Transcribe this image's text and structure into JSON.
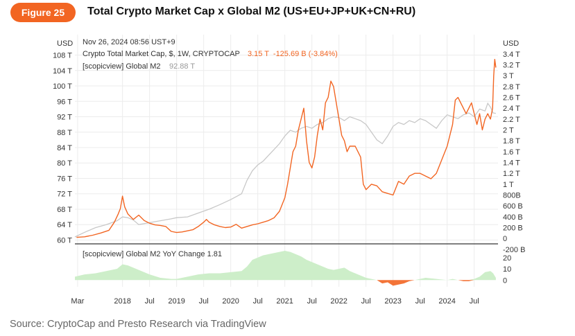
{
  "figure_label": "Figure 25",
  "title": "Total Crypto Market Cap x Global M2 (US+EU+JP+UK+CN+RU)",
  "source": "Source: CryptoCap and Presto Research via TradingView",
  "colors": {
    "accent": "#f26522",
    "crypto": "#f26522",
    "m2": "#c8c8c8",
    "yoy_pos": "#cdeec9",
    "yoy_neg": "#f26522"
  },
  "chart_data": [
    {
      "type": "line",
      "header": {
        "timestamp": "Nov 26, 2024 08:56 UST+9",
        "series1_label": "Crypto Total Market Cap, $, 1W, CRYPTOCAP",
        "series1_values": "3.15 T  -125.69 B (-3.84%)",
        "series2_label": "[scopicview] Global M2",
        "series2_value": "92.88 T"
      },
      "left_axis": {
        "unit": "USD",
        "ticks": [
          "108 T",
          "104 T",
          "100 T",
          "96 T",
          "92 T",
          "88 T",
          "84 T",
          "80 T",
          "76 T",
          "72 T",
          "68 T",
          "64 T",
          "60 T"
        ],
        "range": [
          59,
          109
        ]
      },
      "right_axis": {
        "unit": "USD",
        "ticks": [
          "3.4 T",
          "3.2 T",
          "3 T",
          "2.8 T",
          "2.6 T",
          "2.4 T",
          "2.2 T",
          "2 T",
          "1.8 T",
          "1.6 T",
          "1.4 T",
          "1.2 T",
          "1 T",
          "800B",
          "600 B",
          "400 B",
          "200 B",
          "0",
          "-200 B"
        ],
        "range": [
          -0.1,
          3.45
        ]
      },
      "x_axis": {
        "ticks": [
          "Mar",
          "2018",
          "Jul",
          "2019",
          "Jul",
          "2020",
          "Jul",
          "2021",
          "Jul",
          "2022",
          "Jul",
          "2023",
          "Jul",
          "2024",
          "Jul"
        ],
        "range": [
          2017.12,
          2024.94
        ]
      },
      "series": [
        {
          "name": "Crypto Total Market Cap",
          "axis": "right",
          "x": [
            2017.15,
            2017.3,
            2017.45,
            2017.6,
            2017.75,
            2017.85,
            2017.92,
            2017.96,
            2018.0,
            2018.04,
            2018.1,
            2018.2,
            2018.3,
            2018.4,
            2018.5,
            2018.6,
            2018.7,
            2018.8,
            2018.9,
            2019.0,
            2019.1,
            2019.2,
            2019.3,
            2019.4,
            2019.5,
            2019.55,
            2019.6,
            2019.7,
            2019.8,
            2019.9,
            2020.0,
            2020.1,
            2020.2,
            2020.3,
            2020.4,
            2020.5,
            2020.6,
            2020.7,
            2020.8,
            2020.9,
            2021.0,
            2021.05,
            2021.1,
            2021.15,
            2021.2,
            2021.25,
            2021.3,
            2021.35,
            2021.4,
            2021.45,
            2021.5,
            2021.55,
            2021.6,
            2021.65,
            2021.7,
            2021.75,
            2021.8,
            2021.85,
            2021.9,
            2021.95,
            2022.0,
            2022.05,
            2022.1,
            2022.15,
            2022.2,
            2022.3,
            2022.4,
            2022.45,
            2022.5,
            2022.6,
            2022.7,
            2022.8,
            2022.9,
            2023.0,
            2023.1,
            2023.2,
            2023.3,
            2023.4,
            2023.5,
            2023.6,
            2023.7,
            2023.8,
            2023.9,
            2024.0,
            2024.1,
            2024.15,
            2024.2,
            2024.25,
            2024.3,
            2024.35,
            2024.4,
            2024.45,
            2024.5,
            2024.55,
            2024.6,
            2024.65,
            2024.7,
            2024.75,
            2024.8,
            2024.84,
            2024.86,
            2024.88,
            2024.9
          ],
          "y": [
            0.02,
            0.03,
            0.06,
            0.1,
            0.15,
            0.3,
            0.45,
            0.55,
            0.78,
            0.58,
            0.45,
            0.35,
            0.43,
            0.33,
            0.28,
            0.25,
            0.24,
            0.22,
            0.13,
            0.11,
            0.12,
            0.14,
            0.16,
            0.22,
            0.3,
            0.35,
            0.3,
            0.25,
            0.22,
            0.2,
            0.21,
            0.26,
            0.19,
            0.22,
            0.25,
            0.27,
            0.3,
            0.33,
            0.38,
            0.5,
            0.75,
            1.0,
            1.3,
            1.6,
            1.7,
            2.0,
            2.2,
            2.4,
            1.8,
            1.4,
            1.3,
            1.5,
            1.9,
            2.2,
            2.0,
            2.5,
            2.6,
            2.9,
            2.8,
            2.5,
            2.2,
            1.9,
            1.8,
            1.6,
            1.7,
            1.7,
            1.5,
            1.0,
            0.9,
            1.0,
            0.97,
            0.86,
            0.83,
            0.8,
            1.05,
            1.0,
            1.15,
            1.2,
            1.2,
            1.15,
            1.1,
            1.2,
            1.45,
            1.7,
            2.1,
            2.55,
            2.6,
            2.5,
            2.4,
            2.3,
            2.4,
            2.5,
            2.3,
            2.1,
            2.3,
            2.0,
            2.2,
            2.3,
            2.2,
            2.4,
            3.0,
            3.3,
            3.15
          ]
        },
        {
          "name": "Global M2",
          "axis": "left",
          "x": [
            2017.12,
            2017.3,
            2017.5,
            2017.7,
            2017.9,
            2018.0,
            2018.1,
            2018.2,
            2018.3,
            2018.5,
            2018.7,
            2018.9,
            2019.0,
            2019.2,
            2019.4,
            2019.6,
            2019.8,
            2020.0,
            2020.2,
            2020.3,
            2020.4,
            2020.5,
            2020.6,
            2020.7,
            2020.8,
            2020.9,
            2021.0,
            2021.1,
            2021.2,
            2021.3,
            2021.4,
            2021.5,
            2021.6,
            2021.7,
            2021.8,
            2021.9,
            2022.0,
            2022.1,
            2022.2,
            2022.3,
            2022.4,
            2022.5,
            2022.6,
            2022.7,
            2022.8,
            2022.9,
            2023.0,
            2023.1,
            2023.2,
            2023.3,
            2023.4,
            2023.5,
            2023.6,
            2023.7,
            2023.8,
            2023.9,
            2024.0,
            2024.1,
            2024.2,
            2024.3,
            2024.4,
            2024.5,
            2024.6,
            2024.7,
            2024.75,
            2024.8,
            2024.85,
            2024.9
          ],
          "y": [
            60.8,
            62.0,
            63.2,
            64.0,
            65.0,
            66.0,
            65.8,
            65.2,
            64.0,
            64.5,
            65.0,
            65.5,
            65.8,
            66.0,
            67.0,
            68.0,
            69.2,
            70.5,
            72.0,
            75.5,
            78.0,
            79.5,
            80.5,
            82.0,
            83.5,
            85.0,
            87.0,
            88.5,
            88.0,
            89.0,
            89.5,
            89.0,
            90.0,
            90.5,
            91.5,
            92.0,
            91.8,
            91.0,
            92.0,
            91.5,
            91.0,
            90.0,
            88.0,
            86.0,
            85.0,
            87.0,
            89.5,
            90.5,
            90.0,
            91.0,
            90.5,
            91.5,
            91.0,
            90.0,
            89.0,
            91.0,
            92.5,
            92.0,
            91.5,
            92.5,
            93.0,
            92.0,
            94.0,
            93.5,
            95.5,
            94.5,
            93.0,
            92.88
          ]
        }
      ]
    },
    {
      "type": "area",
      "title": "[scopicview] Global M2 YoY Change 1.81",
      "y_axis": {
        "ticks": [
          "20",
          "10",
          "0"
        ],
        "range": [
          -6,
          26
        ]
      },
      "series": [
        {
          "name": "Global M2 YoY Change",
          "x": [
            2017.12,
            2017.3,
            2017.5,
            2017.7,
            2017.9,
            2018.0,
            2018.1,
            2018.3,
            2018.5,
            2018.7,
            2018.9,
            2019.0,
            2019.2,
            2019.4,
            2019.6,
            2019.8,
            2020.0,
            2020.2,
            2020.3,
            2020.4,
            2020.5,
            2020.6,
            2020.7,
            2020.8,
            2020.9,
            2021.0,
            2021.1,
            2021.2,
            2021.3,
            2021.4,
            2021.5,
            2021.6,
            2021.7,
            2021.8,
            2021.9,
            2022.0,
            2022.1,
            2022.2,
            2022.3,
            2022.4,
            2022.5,
            2022.6,
            2022.7,
            2022.8,
            2022.9,
            2023.0,
            2023.1,
            2023.2,
            2023.3,
            2023.4,
            2023.5,
            2023.6,
            2023.8,
            2024.0,
            2024.1,
            2024.2,
            2024.3,
            2024.4,
            2024.5,
            2024.6,
            2024.7,
            2024.8,
            2024.85,
            2024.9
          ],
          "y": [
            3,
            5,
            6,
            8,
            10,
            14,
            13,
            9,
            5,
            2,
            1,
            1,
            3,
            5,
            6,
            6,
            7,
            8,
            12,
            18,
            20,
            22,
            23,
            24,
            25,
            26,
            25,
            23,
            21,
            18,
            16,
            14,
            12,
            10,
            9,
            10,
            11,
            8,
            6,
            4,
            2,
            1,
            0,
            -3,
            -2,
            -5,
            -4,
            -3,
            -1,
            0,
            1,
            2,
            1,
            0,
            1,
            0,
            -1,
            -1,
            1,
            3,
            7,
            8,
            6,
            2
          ]
        }
      ]
    }
  ]
}
